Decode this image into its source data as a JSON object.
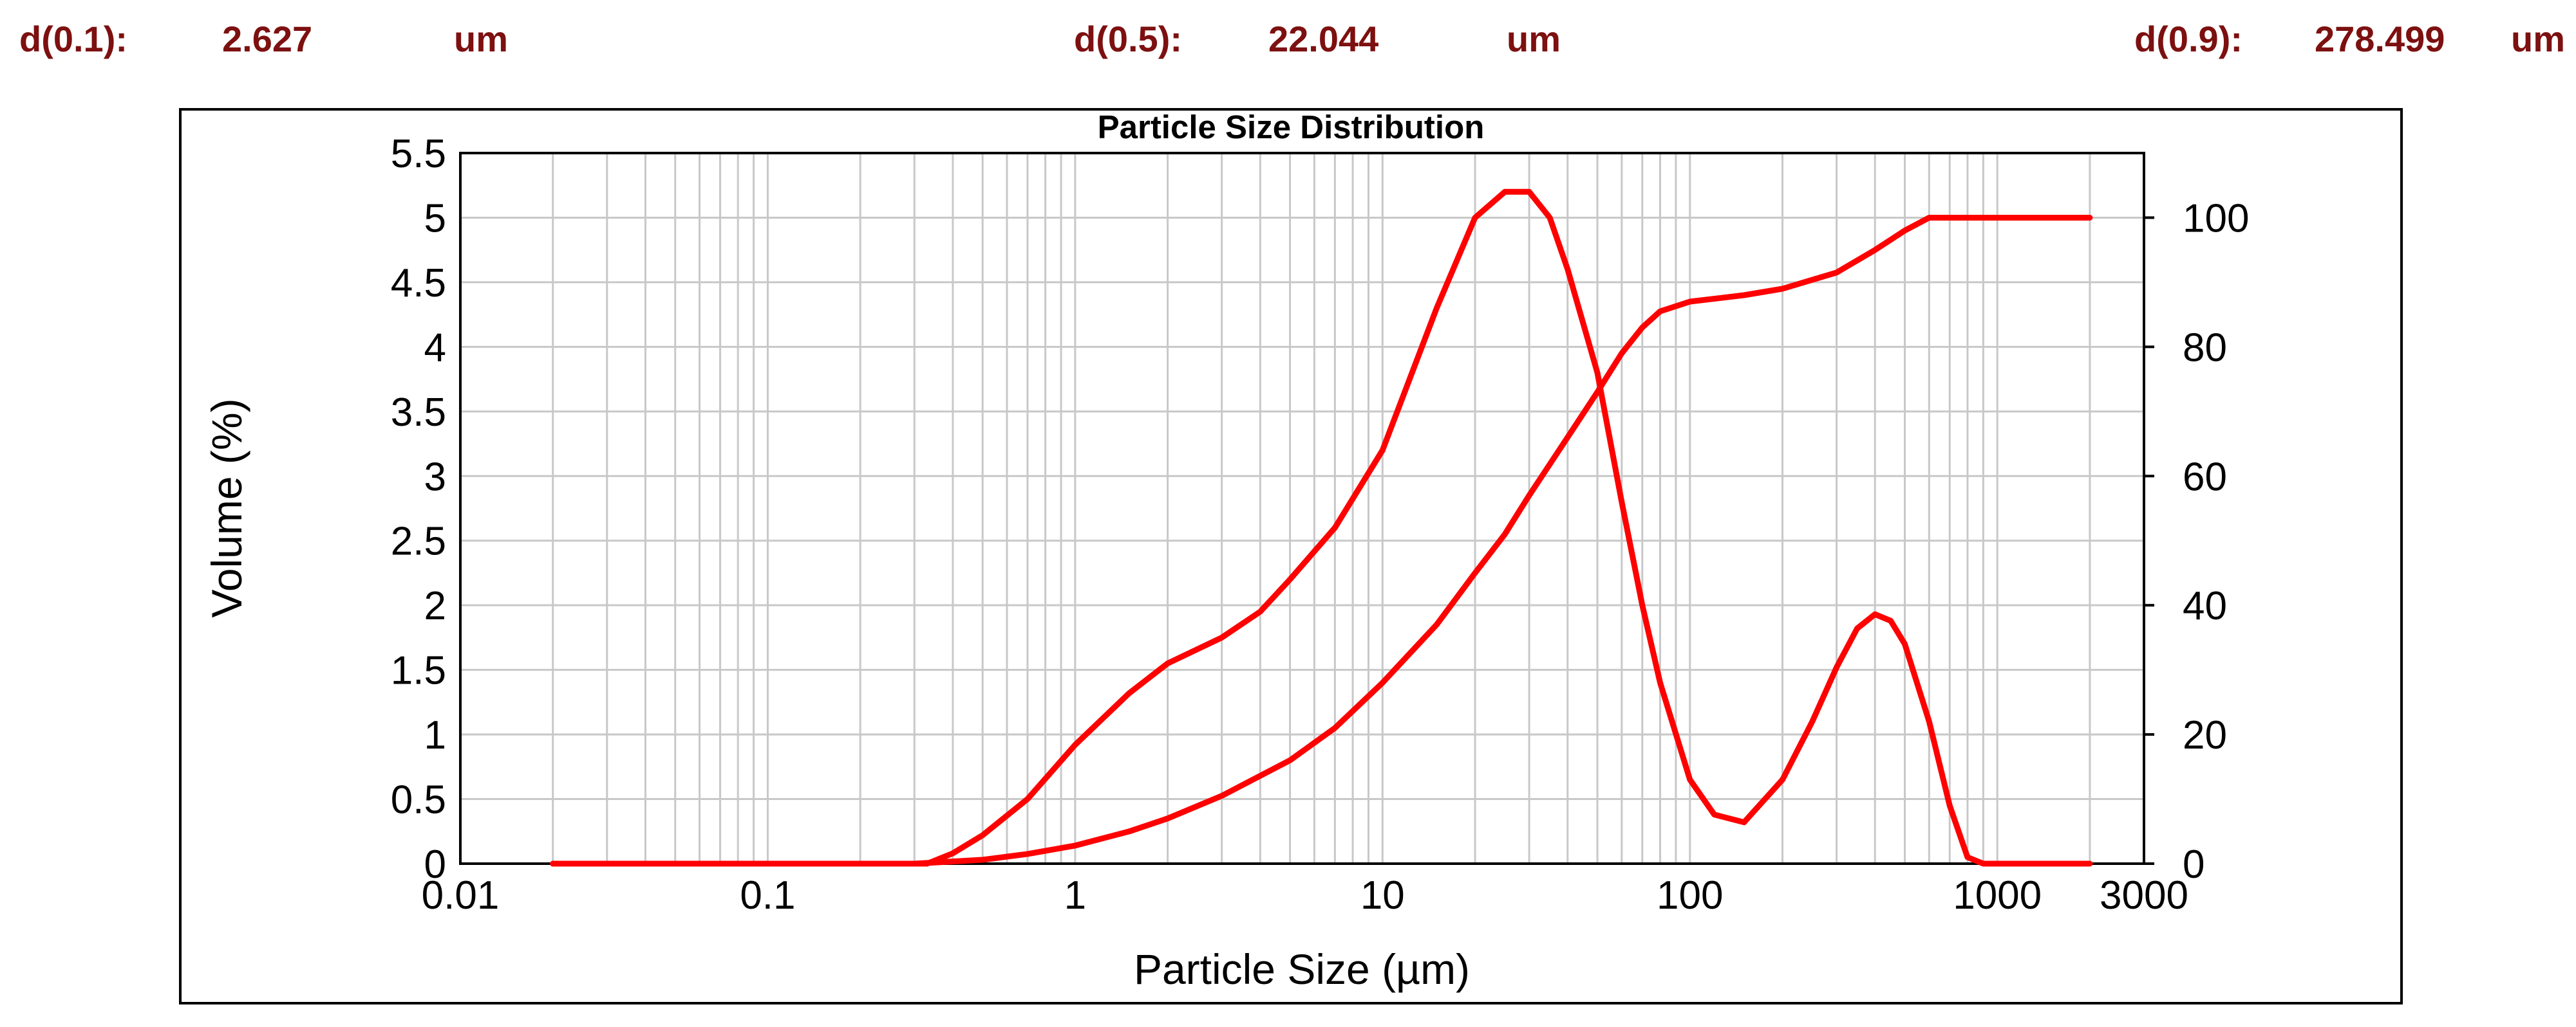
{
  "stats": [
    {
      "label": "d(0.1):",
      "value": "2.627",
      "unit": "um"
    },
    {
      "label": "d(0.5):",
      "value": "22.044",
      "unit": "um"
    },
    {
      "label": "d(0.9):",
      "value": "278.499",
      "unit": "um"
    }
  ],
  "colors": {
    "stats_text": "#7d1010",
    "series": "#ff0000",
    "grid": "#c8c8c8"
  },
  "chart_data": {
    "type": "line",
    "title": "Particle Size Distribution",
    "xlabel": "Particle Size (µm)",
    "ylabel": "Volume (%)",
    "x_scale": "log",
    "xlim": [
      0.01,
      3000
    ],
    "ylim": [
      0,
      5.5
    ],
    "y2lim": [
      0,
      110
    ],
    "grid": true,
    "legend": "none",
    "x_tick_labels": [
      "0.01",
      "0.1",
      "1",
      "10",
      "100",
      "1000",
      "3000"
    ],
    "y_tick_labels": [
      "0",
      "0.5",
      "1",
      "1.5",
      "2",
      "2.5",
      "3",
      "3.5",
      "4",
      "4.5",
      "5",
      "5.5"
    ],
    "y2_tick_labels": [
      "0",
      "20",
      "40",
      "60",
      "80",
      "100"
    ],
    "series": [
      {
        "axis": "left",
        "x": [
          0.02,
          0.1,
          0.33,
          0.4,
          0.5,
          0.7,
          1,
          1.5,
          2,
          3,
          4,
          5,
          7,
          10,
          15,
          20,
          25,
          30,
          35,
          40,
          50,
          60,
          70,
          80,
          100,
          120,
          150,
          200,
          250,
          300,
          350,
          400,
          450,
          500,
          600,
          700,
          800,
          900,
          1000,
          2000
        ],
        "y": [
          0,
          0,
          0,
          0.08,
          0.22,
          0.5,
          0.92,
          1.32,
          1.55,
          1.75,
          1.95,
          2.2,
          2.6,
          3.2,
          4.3,
          5.0,
          5.2,
          5.2,
          5.0,
          4.6,
          3.8,
          2.8,
          2.0,
          1.4,
          0.65,
          0.38,
          0.32,
          0.65,
          1.1,
          1.52,
          1.82,
          1.93,
          1.88,
          1.7,
          1.1,
          0.45,
          0.05,
          0,
          0,
          0
        ]
      },
      {
        "axis": "right",
        "x": [
          0.02,
          0.1,
          0.3,
          0.5,
          0.7,
          1,
          1.5,
          2,
          3,
          5,
          7,
          10,
          15,
          20,
          25,
          30,
          40,
          50,
          60,
          70,
          80,
          100,
          150,
          200,
          300,
          400,
          500,
          600,
          700,
          800,
          900,
          1000,
          2000
        ],
        "y": [
          0,
          0,
          0,
          0.6,
          1.5,
          2.8,
          5,
          7,
          10.5,
          16,
          21,
          28,
          37,
          45,
          51,
          57,
          66,
          73,
          79,
          83,
          85.5,
          87,
          88,
          89,
          91.5,
          95,
          98,
          100,
          100,
          100,
          100,
          100,
          100
        ]
      }
    ]
  }
}
